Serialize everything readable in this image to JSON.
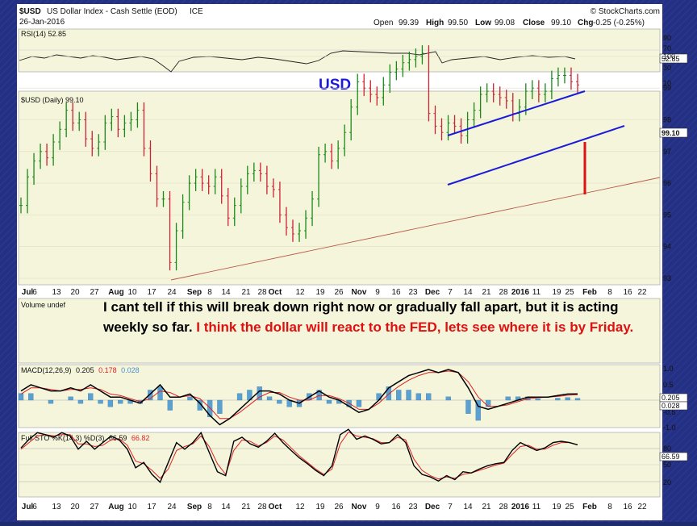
{
  "header": {
    "symbol": "$USD",
    "name": "US Dollar Index - Cash Settle (EOD)",
    "exchange": "ICE",
    "date": "26-Jan-2016",
    "watermark": "© StockCharts.com",
    "ohlc": {
      "open_label": "Open",
      "open": "99.39",
      "high_label": "High",
      "high": "99.50",
      "low_label": "Low",
      "low": "99.08",
      "close_label": "Close",
      "close": "99.10",
      "chg_label": "Chg",
      "chg": "-0.25 (-0.25%)"
    }
  },
  "panels": {
    "rsi": {
      "legend": "RSI(14) 52.85",
      "ticks": [
        "90",
        "70",
        "30",
        "10"
      ],
      "value_tag": "52.85"
    },
    "price": {
      "legend": "$USD (Daily) 99.10",
      "title": "USD",
      "ticks": [
        "100",
        "99",
        "98",
        "97",
        "96",
        "95",
        "94",
        "93"
      ],
      "value_tag": "99.10"
    },
    "volume": {
      "legend": "Volume undef",
      "note_part1": "I cant tell if this will break down right now or gradually fall apart, but it is acting weekly so far. ",
      "note_part2": "I think the dollar will react to the FED,  lets see where it is by Friday."
    },
    "macd": {
      "legend_prefix": "MACD(12,26,9)",
      "v1": "0.205",
      "v2": "0.178",
      "v3": "0.028",
      "ticks": [
        "1.0",
        "0.5",
        "-0.5",
        "-1.0"
      ],
      "tags": [
        "0.205",
        "0.028"
      ]
    },
    "sto": {
      "legend_prefix": "Full STO %K(14,3) %D(3)",
      "v1": "66.59",
      "v2": "66.82",
      "ticks": [
        "80",
        "50",
        "20"
      ],
      "tags": [
        "66.59"
      ]
    }
  },
  "x_axis_labels": [
    "Jul",
    "6",
    "13",
    "20",
    "27",
    "Aug",
    "10",
    "17",
    "24",
    "Sep",
    "8",
    "14",
    "21",
    "28",
    "Oct",
    "12",
    "19",
    "26",
    "Nov",
    "9",
    "16",
    "23",
    "Dec",
    "7",
    "14",
    "21",
    "28",
    "2016",
    "11",
    "19",
    "25",
    "Feb",
    "8",
    "16",
    "22"
  ],
  "colors": {
    "panel_bg": "#f5f5dc",
    "up_bar": "#1a8a1a",
    "down_bar": "#cc2233",
    "channel": "#1a1adc",
    "trendline": "#b85c4c",
    "note_black": "#000000",
    "note_red": "#e01010",
    "macd_line": "#000000",
    "signal_line": "#dd2222",
    "histogram": "#5aa0d0"
  },
  "chart_data": {
    "type": "ohlc",
    "price_close_series": [
      95.3,
      96.2,
      96.7,
      97.0,
      96.8,
      97.3,
      97.7,
      98.3,
      97.9,
      98.0,
      97.4,
      97.1,
      97.3,
      97.9,
      98.1,
      97.7,
      97.9,
      98.0,
      98.3,
      97.1,
      96.3,
      95.5,
      95.5,
      93.5,
      94.5,
      95.4,
      96.0,
      96.2,
      96.0,
      95.9,
      96.2,
      95.6,
      94.9,
      95.3,
      95.9,
      96.3,
      96.4,
      96.3,
      95.9,
      95.8,
      95.0,
      94.6,
      94.4,
      94.5,
      94.9,
      95.5,
      96.9,
      97.0,
      96.7,
      97.1,
      97.6,
      98.4,
      99.2,
      99.0,
      98.8,
      98.7,
      99.1,
      99.5,
      99.6,
      99.8,
      99.9,
      100.0,
      100.1,
      98.2,
      97.8,
      97.6,
      97.9,
      97.8,
      97.5,
      98.0,
      98.3,
      98.8,
      98.9,
      98.8,
      98.7,
      98.6,
      98.2,
      98.4,
      98.9,
      99.0,
      98.8,
      98.9,
      99.3,
      99.4,
      99.4,
      99.2,
      99.1
    ],
    "macd": [
      0.3,
      0.5,
      0.4,
      0.3,
      0.3,
      0.4,
      0.3,
      0.5,
      0.3,
      0.1,
      0.1,
      0.0,
      -0.1,
      0.2,
      0.5,
      0.1,
      0.1,
      0.2,
      -0.1,
      -0.5,
      -0.8,
      -0.6,
      -0.3,
      0.0,
      0.3,
      0.3,
      0.2,
      0.0,
      -0.1,
      0.1,
      0.3,
      0.1,
      0.0,
      -0.2,
      -0.4,
      -0.3,
      0.0,
      0.4,
      0.6,
      0.8,
      0.9,
      1.0,
      0.9,
      1.0,
      0.9,
      0.4,
      -0.2,
      -0.3,
      -0.2,
      -0.1,
      0.0,
      0.1,
      0.1,
      0.1,
      0.15,
      0.2,
      0.205
    ],
    "macd_signal": [
      0.2,
      0.4,
      0.4,
      0.35,
      0.3,
      0.35,
      0.35,
      0.4,
      0.35,
      0.2,
      0.15,
      0.05,
      -0.05,
      0.05,
      0.3,
      0.25,
      0.1,
      0.15,
      0.05,
      -0.25,
      -0.6,
      -0.6,
      -0.4,
      -0.15,
      0.1,
      0.25,
      0.25,
      0.1,
      0.0,
      0.0,
      0.15,
      0.15,
      0.05,
      -0.1,
      -0.3,
      -0.3,
      -0.1,
      0.2,
      0.45,
      0.65,
      0.8,
      0.9,
      0.9,
      0.95,
      0.9,
      0.6,
      0.1,
      -0.2,
      -0.2,
      -0.15,
      -0.05,
      0.05,
      0.08,
      0.1,
      0.12,
      0.16,
      0.178
    ],
    "stoch_k": [
      62,
      75,
      85,
      82,
      78,
      85,
      80,
      60,
      72,
      60,
      70,
      80,
      74,
      60,
      32,
      40,
      22,
      10,
      40,
      70,
      60,
      70,
      85,
      55,
      26,
      20,
      72,
      78,
      68,
      63,
      72,
      84,
      70,
      58,
      47,
      38,
      28,
      20,
      35,
      82,
      90,
      75,
      80,
      75,
      68,
      70,
      82,
      70,
      35,
      22,
      18,
      12,
      20,
      14,
      26,
      24,
      30,
      35,
      38,
      40,
      58,
      70,
      64,
      58,
      62,
      70,
      72,
      70,
      66.59
    ],
    "stoch_d": [
      60,
      70,
      80,
      82,
      80,
      82,
      82,
      68,
      68,
      64,
      66,
      74,
      76,
      66,
      42,
      38,
      28,
      16,
      30,
      58,
      64,
      68,
      80,
      64,
      38,
      22,
      58,
      74,
      72,
      65,
      70,
      80,
      74,
      62,
      50,
      40,
      30,
      22,
      30,
      68,
      86,
      80,
      78,
      76,
      70,
      70,
      78,
      74,
      45,
      28,
      20,
      15,
      18,
      16,
      22,
      24,
      28,
      32,
      36,
      39,
      52,
      64,
      66,
      60,
      60,
      66,
      70,
      70,
      66.82
    ]
  }
}
